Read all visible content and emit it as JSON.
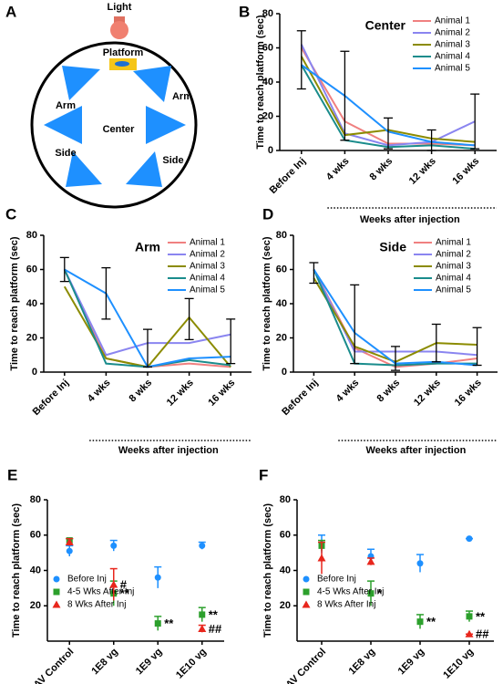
{
  "diagram": {
    "panel": "A",
    "light": "Light",
    "platform": "Platform",
    "labels": [
      "Arm",
      "Arm",
      "Center",
      "Side",
      "Side"
    ]
  },
  "chart_data": [
    {
      "type": "line",
      "panel": "B",
      "title": "Center",
      "ylabel": "Time to reach platform (sec)",
      "xlabel": "Weeks after injection",
      "categories": [
        "Before Inj",
        "4 wks",
        "8 wks",
        "12 wks",
        "16 wks"
      ],
      "ylim": [
        0,
        80
      ],
      "yticks": [
        0,
        20,
        40,
        60,
        80
      ],
      "series": [
        {
          "name": "Animal 1",
          "color": "#f08080",
          "values": [
            60,
            17,
            4,
            4,
            3
          ]
        },
        {
          "name": "Animal 2",
          "color": "#8a85f0",
          "values": [
            62,
            10,
            3,
            5,
            17
          ]
        },
        {
          "name": "Animal 3",
          "color": "#8b8b00",
          "values": [
            55,
            9,
            12,
            7,
            5
          ]
        },
        {
          "name": "Animal 4",
          "color": "#1a8c8c",
          "values": [
            50,
            6,
            2,
            3,
            1
          ]
        },
        {
          "name": "Animal 5",
          "color": "#1e90ff",
          "values": [
            50,
            32,
            11,
            5,
            3
          ]
        }
      ],
      "error_bars": {
        "values": [
          53,
          32,
          10,
          6,
          17
        ],
        "errors": [
          17,
          26,
          9,
          6,
          16
        ]
      }
    },
    {
      "type": "line",
      "panel": "C",
      "title": "Arm",
      "ylabel": "Time to reach platform (sec)",
      "xlabel": "Weeks after injection",
      "categories": [
        "Before Inj",
        "4 wks",
        "8 wks",
        "12 wks",
        "16 wks"
      ],
      "ylim": [
        0,
        80
      ],
      "yticks": [
        0,
        20,
        40,
        60,
        80
      ],
      "series": [
        {
          "name": "Animal 1",
          "color": "#f08080",
          "values": [
            60,
            8,
            3,
            5,
            3
          ]
        },
        {
          "name": "Animal 2",
          "color": "#8a85f0",
          "values": [
            60,
            10,
            17,
            17,
            22
          ]
        },
        {
          "name": "Animal 3",
          "color": "#8b8b00",
          "values": [
            50,
            8,
            3,
            32,
            3
          ]
        },
        {
          "name": "Animal 4",
          "color": "#1a8c8c",
          "values": [
            60,
            5,
            3,
            7,
            4
          ]
        },
        {
          "name": "Animal 5",
          "color": "#1e90ff",
          "values": [
            60,
            46,
            3,
            8,
            9
          ]
        }
      ],
      "error_bars": {
        "values": [
          60,
          46,
          14,
          31,
          18
        ],
        "errors": [
          7,
          15,
          11,
          12,
          13
        ]
      }
    },
    {
      "type": "line",
      "panel": "D",
      "title": "Side",
      "ylabel": "Time to reach platform (sec)",
      "xlabel": "Weeks after injection",
      "categories": [
        "Before Inj",
        "4 wks",
        "8 wks",
        "12 wks",
        "16 wks"
      ],
      "ylim": [
        0,
        80
      ],
      "yticks": [
        0,
        20,
        40,
        60,
        80
      ],
      "series": [
        {
          "name": "Animal 1",
          "color": "#f08080",
          "values": [
            60,
            14,
            3,
            5,
            8
          ]
        },
        {
          "name": "Animal 2",
          "color": "#8a85f0",
          "values": [
            60,
            12,
            12,
            12,
            10
          ]
        },
        {
          "name": "Animal 3",
          "color": "#8b8b00",
          "values": [
            55,
            15,
            6,
            17,
            16
          ]
        },
        {
          "name": "Animal 4",
          "color": "#1a8c8c",
          "values": [
            60,
            5,
            4,
            5,
            5
          ]
        },
        {
          "name": "Animal 5",
          "color": "#1e90ff",
          "values": [
            60,
            23,
            5,
            6,
            4
          ]
        }
      ],
      "error_bars": {
        "values": [
          58,
          28,
          8,
          17,
          15
        ],
        "errors": [
          6,
          23,
          7,
          11,
          11
        ]
      }
    },
    {
      "type": "scatter",
      "panel": "E",
      "ylabel": "Time to reach platform (sec)",
      "categories": [
        "AAV Control",
        "1E8 vg",
        "1E9 vg",
        "1E10 vg"
      ],
      "ylim": [
        0,
        80
      ],
      "yticks": [
        20,
        40,
        60,
        80
      ],
      "series": [
        {
          "name": "Before Inj",
          "color": "#1e90ff",
          "marker": "circle",
          "values": [
            51,
            54,
            36,
            54
          ],
          "errors": [
            3,
            3,
            6,
            2
          ]
        },
        {
          "name": "4-5 Wks After Inj",
          "color": "#2ca02c",
          "marker": "square",
          "values": [
            57,
            27,
            10,
            15
          ],
          "errors": [
            1,
            7,
            4,
            4
          ]
        },
        {
          "name": "8 Wks After Inj",
          "color": "#e8261c",
          "marker": "triangle",
          "values": [
            56,
            32,
            null,
            7
          ],
          "errors": [
            2,
            9,
            null,
            2
          ]
        }
      ],
      "annotations": [
        {
          "text": "#",
          "category": "1E8 vg",
          "series": "8 Wks After Inj"
        },
        {
          "text": "**",
          "category": "1E8 vg",
          "series": "4-5 Wks After Inj"
        },
        {
          "text": "**",
          "category": "1E9 vg",
          "series": "4-5 Wks After Inj"
        },
        {
          "text": "**",
          "category": "1E10 vg",
          "series": "4-5 Wks After Inj"
        },
        {
          "text": "##",
          "category": "1E10 vg",
          "series": "8 Wks After Inj"
        }
      ]
    },
    {
      "type": "scatter",
      "panel": "F",
      "ylabel": "Time to reach platform (sec)",
      "categories": [
        "AAV Control",
        "1E8 vg",
        "1E9 vg",
        "1E10 vg"
      ],
      "ylim": [
        0,
        80
      ],
      "yticks": [
        20,
        40,
        60,
        80
      ],
      "series": [
        {
          "name": "Before Inj",
          "color": "#1e90ff",
          "marker": "circle",
          "values": [
            55,
            48,
            44,
            58
          ],
          "errors": [
            5,
            4,
            5,
            0
          ]
        },
        {
          "name": "4-5 Wks After Inj",
          "color": "#2ca02c",
          "marker": "square",
          "values": [
            54,
            27,
            11,
            14
          ],
          "errors": [
            3,
            7,
            4,
            3
          ]
        },
        {
          "name": "8 Wks After Inj",
          "color": "#e8261c",
          "marker": "triangle",
          "values": [
            47,
            45,
            null,
            4
          ],
          "errors": [
            9,
            2,
            null,
            0
          ]
        }
      ],
      "annotations": [
        {
          "text": "*",
          "category": "1E8 vg",
          "series": "4-5 Wks After Inj"
        },
        {
          "text": "**",
          "category": "1E9 vg",
          "series": "4-5 Wks After Inj"
        },
        {
          "text": "**",
          "category": "1E10 vg",
          "series": "4-5 Wks After Inj"
        },
        {
          "text": "##",
          "category": "1E10 vg",
          "series": "8 Wks After Inj"
        }
      ]
    }
  ]
}
